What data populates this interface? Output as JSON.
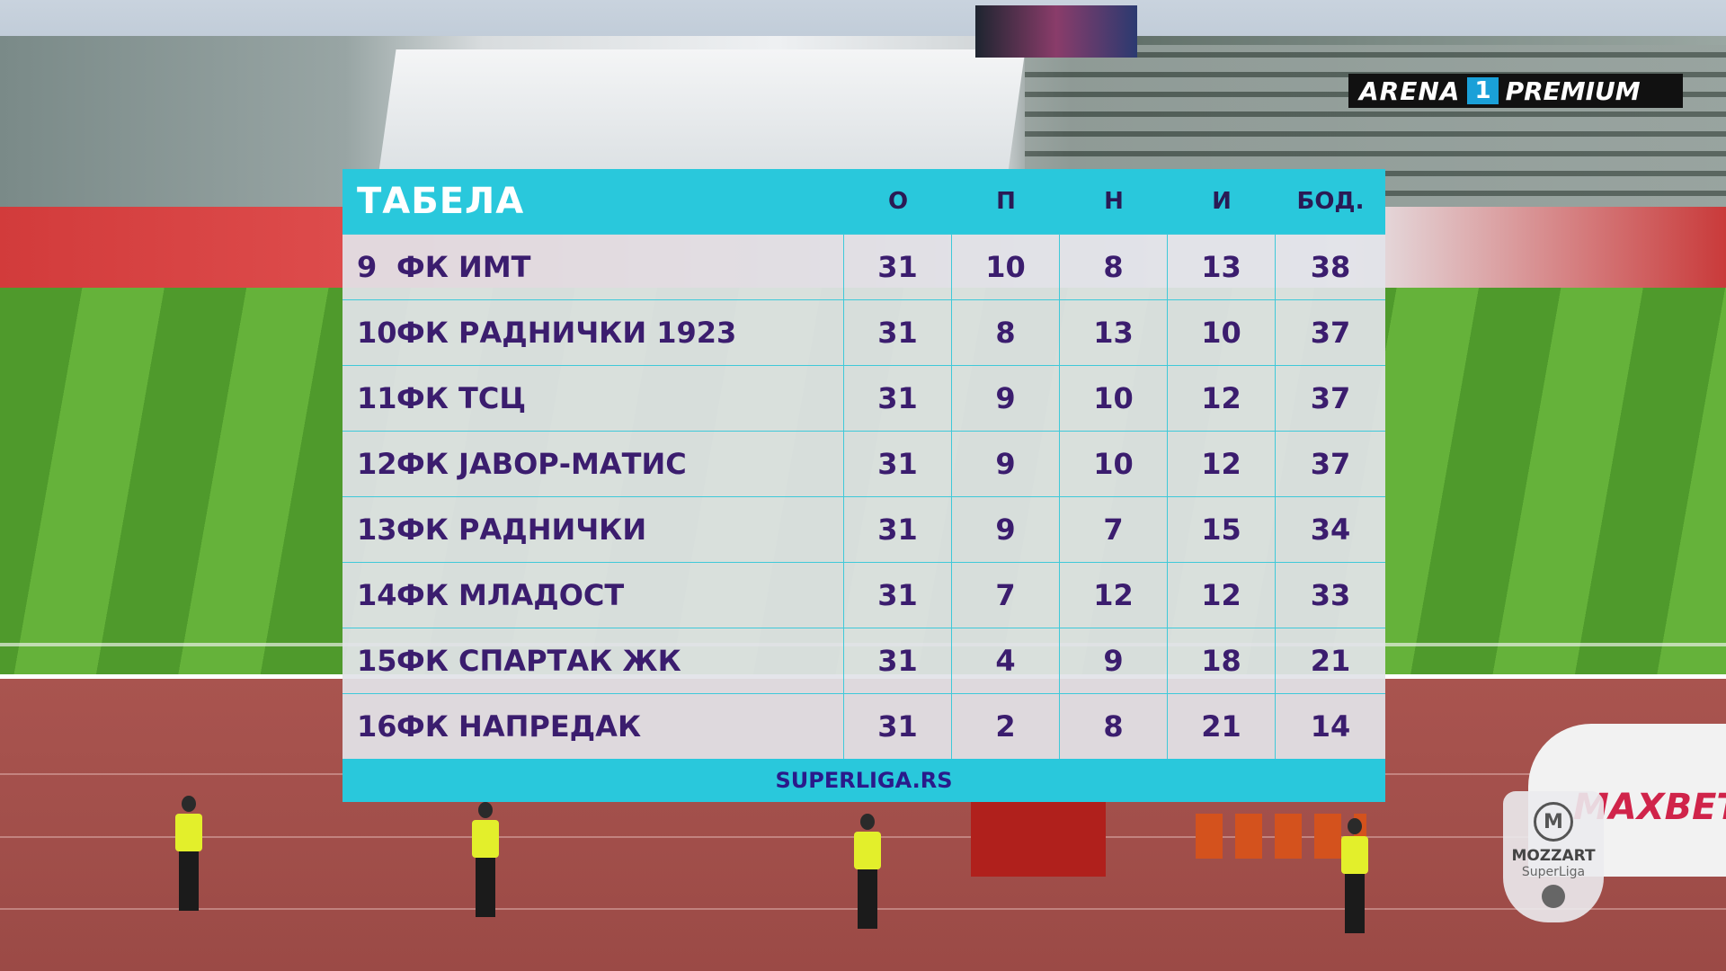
{
  "broadcaster": {
    "name": "ARENA",
    "number": "1",
    "tier": "PREMIUM"
  },
  "table": {
    "title": "ТАБЕЛА",
    "columns": [
      "О",
      "П",
      "Н",
      "И",
      "БОД."
    ],
    "rows": [
      {
        "pos": "9",
        "team": "ФК ИМТ",
        "o": "31",
        "p": "10",
        "n": "8",
        "i": "13",
        "pts": "38"
      },
      {
        "pos": "10",
        "team": "ФК РАДНИЧКИ 1923",
        "o": "31",
        "p": "8",
        "n": "13",
        "i": "10",
        "pts": "37"
      },
      {
        "pos": "11",
        "team": "ФК ТСЦ",
        "o": "31",
        "p": "9",
        "n": "10",
        "i": "12",
        "pts": "37"
      },
      {
        "pos": "12",
        "team": "ФК ЈАВОР-МАТИС",
        "o": "31",
        "p": "9",
        "n": "10",
        "i": "12",
        "pts": "37"
      },
      {
        "pos": "13",
        "team": "ФК РАДНИЧКИ",
        "o": "31",
        "p": "9",
        "n": "7",
        "i": "15",
        "pts": "34"
      },
      {
        "pos": "14",
        "team": "ФК МЛАДОСТ",
        "o": "31",
        "p": "7",
        "n": "12",
        "i": "12",
        "pts": "33"
      },
      {
        "pos": "15",
        "team": "ФК СПАРТАК ЖК",
        "o": "31",
        "p": "4",
        "n": "9",
        "i": "18",
        "pts": "21"
      },
      {
        "pos": "16",
        "team": "ФК НАПРЕДАК",
        "o": "31",
        "p": "2",
        "n": "8",
        "i": "21",
        "pts": "14"
      }
    ],
    "footer": "SUPERLIGA.RS"
  },
  "league_badge": {
    "brand": "MOZZART",
    "league": "SuperLiga"
  },
  "sponsor": "MAXBET"
}
